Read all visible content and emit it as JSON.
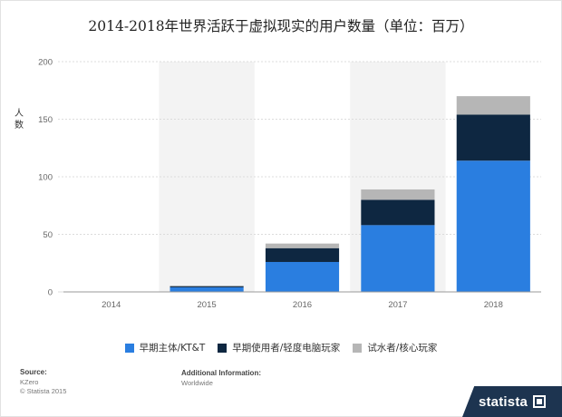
{
  "title": "2014-2018年世界活跃于虚拟现实的用户数量（单位：百万）",
  "colors": {
    "series1": "#2a7ee0",
    "series2": "#0e2741",
    "series3": "#b6b6b6",
    "band": "#f3f3f3",
    "grid": "#dcdcdc",
    "brand": "#1d3450"
  },
  "chart_data": {
    "type": "bar",
    "stacked": true,
    "categories": [
      "2014",
      "2015",
      "2016",
      "2017",
      "2018"
    ],
    "series": [
      {
        "name": "早期主体/KT&T",
        "values": [
          0,
          4,
          26,
          58,
          114
        ]
      },
      {
        "name": "早期使用者/轻度电脑玩家",
        "values": [
          0,
          1,
          12,
          22,
          40
        ]
      },
      {
        "name": "试水者/核心玩家",
        "values": [
          0,
          0,
          4,
          9,
          16
        ]
      }
    ],
    "ylabel": "人数",
    "xlabel": "",
    "ylim": [
      0,
      200
    ],
    "yticks": [
      0,
      50,
      100,
      150,
      200
    ],
    "grid": true,
    "legend_position": "bottom"
  },
  "footer": {
    "source_label": "Source:",
    "source_name": "KZero",
    "copyright": "© Statista 2015",
    "additional_label": "Additional Information:",
    "additional_value": "Worldwide"
  },
  "brand": {
    "name": "statista",
    "icon": "statista-logo-icon"
  }
}
